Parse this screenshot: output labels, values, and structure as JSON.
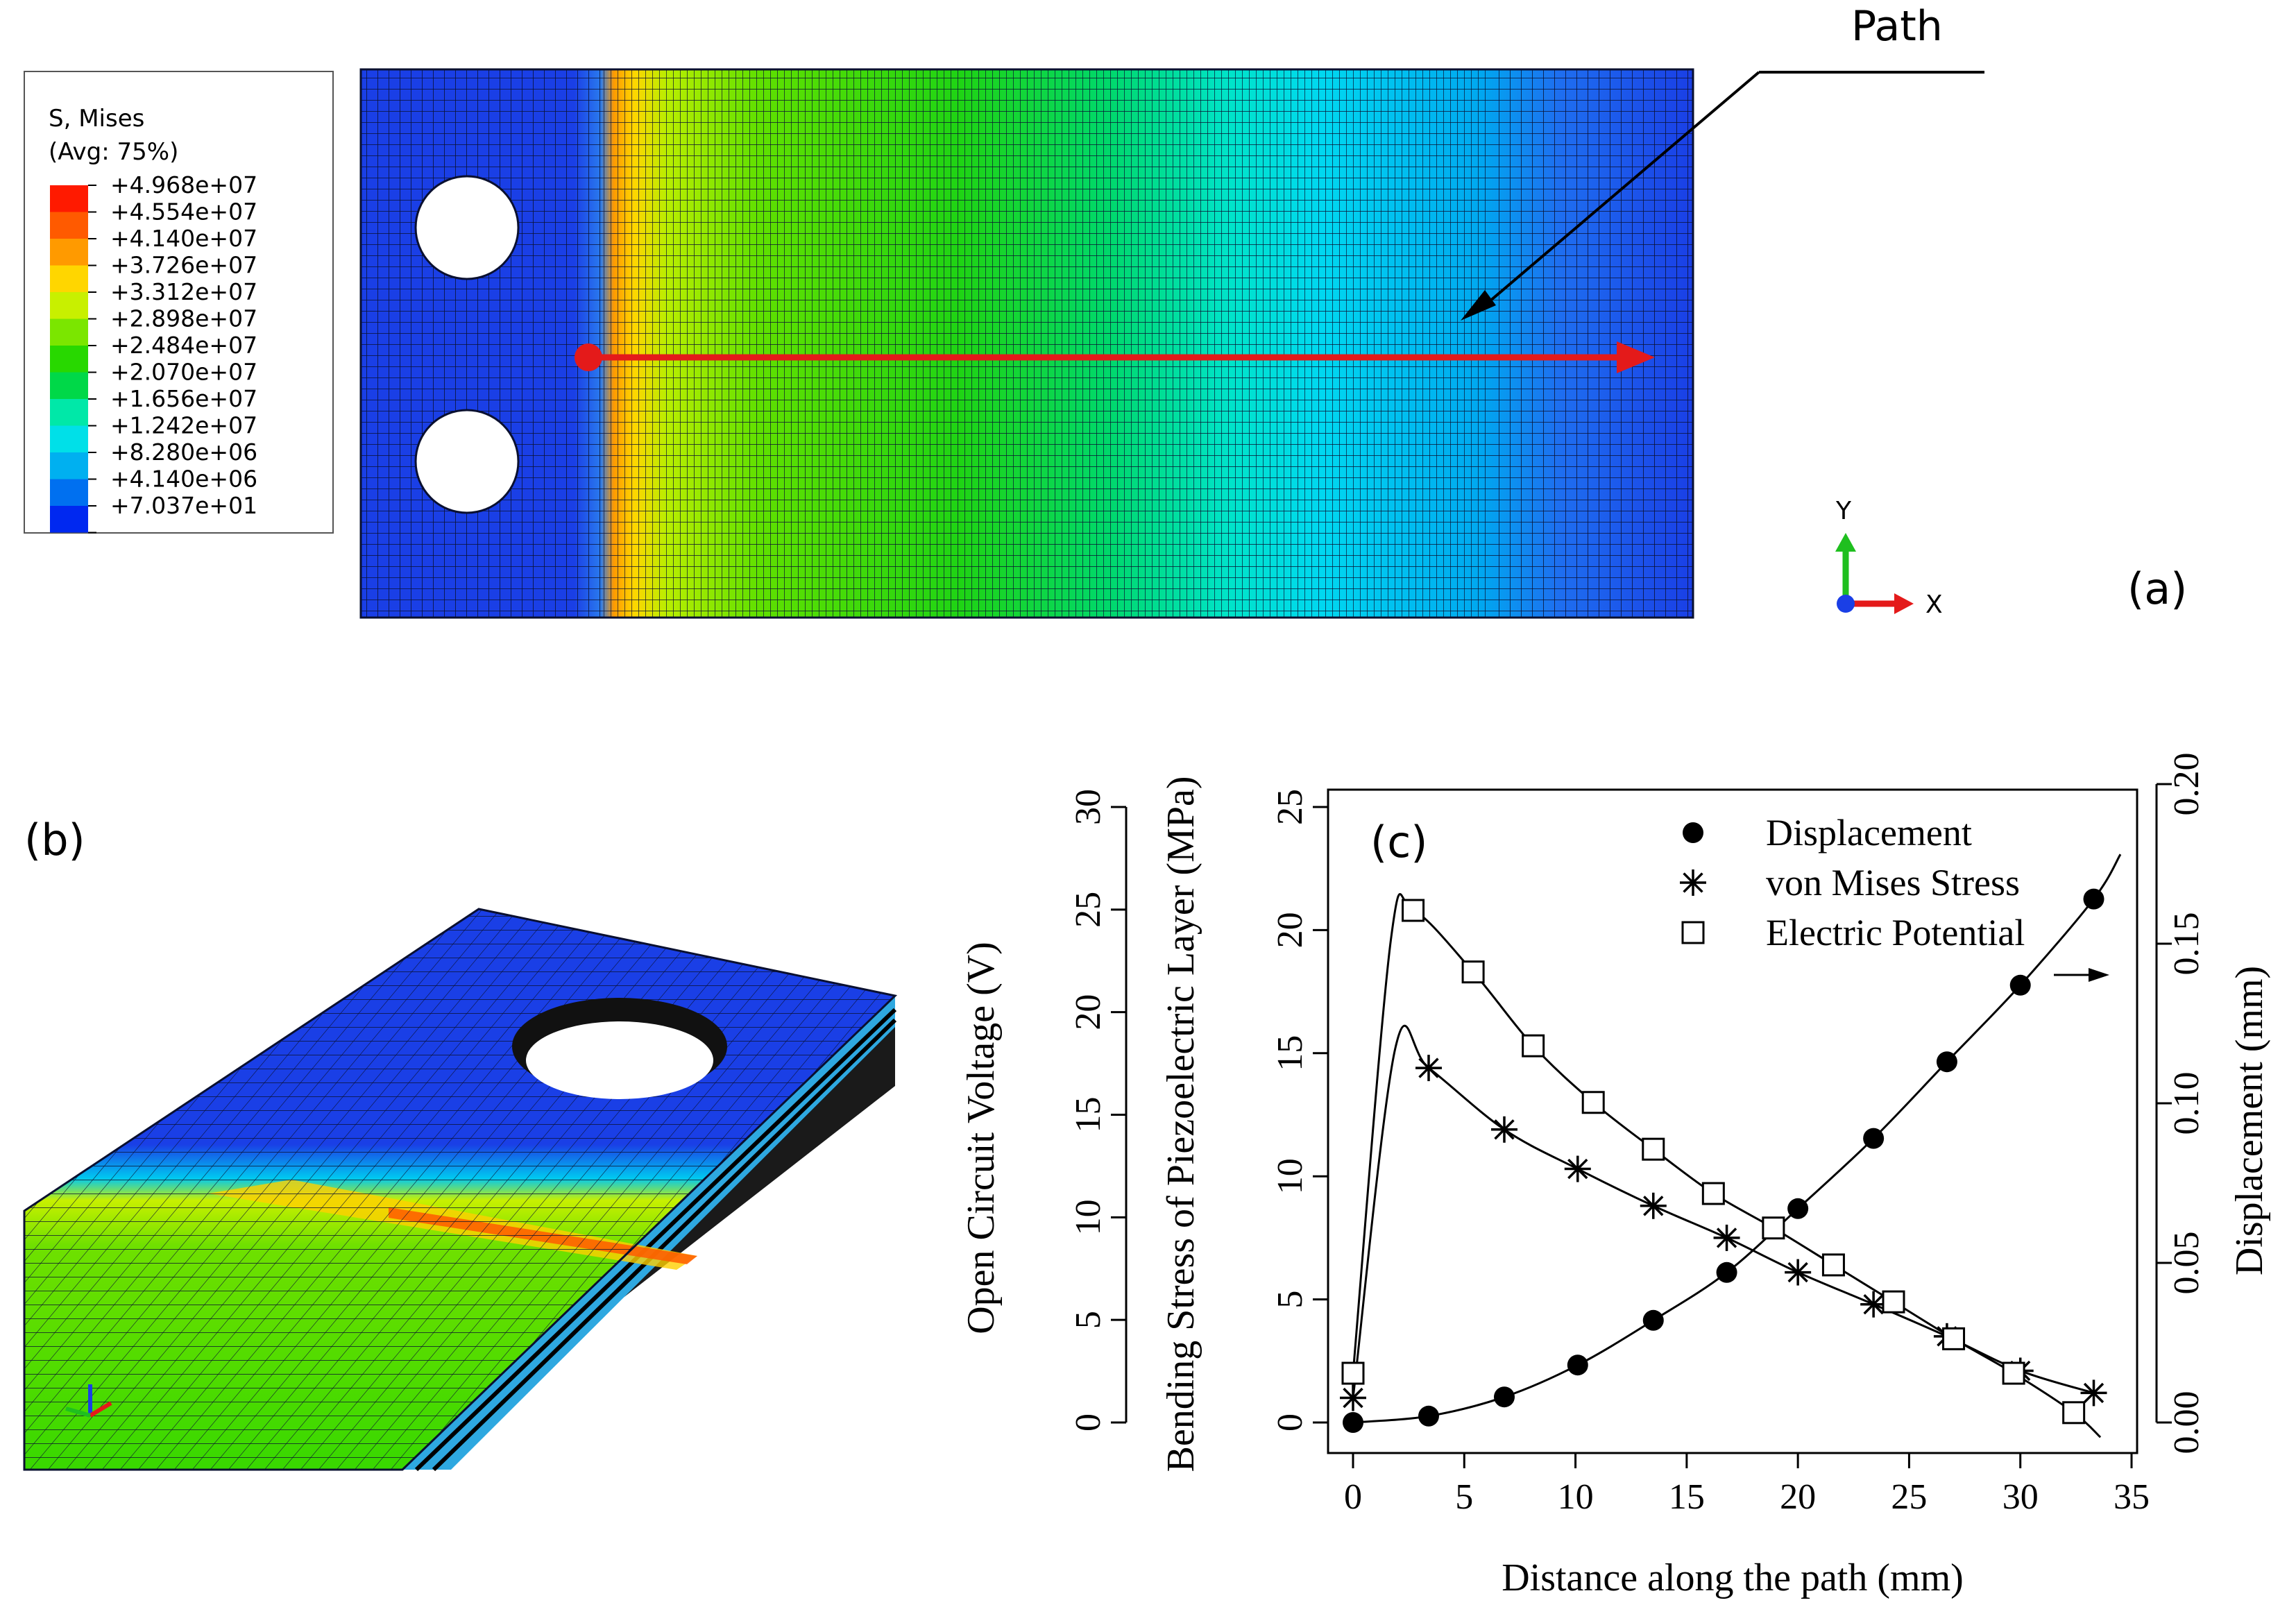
{
  "panel_a": {
    "legend": {
      "title": "S, Mises",
      "subtitle": "(Avg: 75%)",
      "entries": [
        {
          "label": "+4.968e+07",
          "color": "#ff1a00"
        },
        {
          "label": "+4.554e+07",
          "color": "#ff5a00"
        },
        {
          "label": "+4.140e+07",
          "color": "#ff9a00"
        },
        {
          "label": "+3.726e+07",
          "color": "#ffd600"
        },
        {
          "label": "+3.312e+07",
          "color": "#c8f000"
        },
        {
          "label": "+2.898e+07",
          "color": "#7be600"
        },
        {
          "label": "+2.484e+07",
          "color": "#28d800"
        },
        {
          "label": "+2.070e+07",
          "color": "#00d848"
        },
        {
          "label": "+1.656e+07",
          "color": "#00e8a8"
        },
        {
          "label": "+1.242e+07",
          "color": "#00e0e8"
        },
        {
          "label": "+8.280e+06",
          "color": "#00b0f0"
        },
        {
          "label": "+4.140e+06",
          "color": "#0070f0"
        },
        {
          "label": "+7.037e+01",
          "color": "#0028f0"
        }
      ]
    },
    "path_label": "Path",
    "panel_label": "(a)",
    "triad": {
      "y": "Y",
      "x": "X"
    }
  },
  "panel_b": {
    "panel_label": "(b)"
  },
  "panel_c": {
    "panel_label": "(c)"
  },
  "chart_data": {
    "type": "line",
    "title": "",
    "xlabel": "Distance along the path (mm)",
    "ylabel_left_outer": "Open Circuit Voltage (V)",
    "ylabel_left_inner": "Bending Stress of Piezoelectric Layer (MPa)",
    "ylabel_right": "Displacement (mm)",
    "xlim": [
      0,
      35
    ],
    "xticks": [
      "0",
      "5",
      "10",
      "15",
      "20",
      "25",
      "30",
      "35"
    ],
    "ylim_voltage": [
      0,
      30
    ],
    "yticks_voltage": [
      "0",
      "5",
      "10",
      "15",
      "20",
      "25",
      "30"
    ],
    "ylim_stress": [
      0,
      25
    ],
    "yticks_stress": [
      "0",
      "5",
      "10",
      "15",
      "20",
      "25"
    ],
    "ylim_displacement": [
      0,
      0.2
    ],
    "yticks_displacement": [
      "0.00",
      "0.05",
      "0.10",
      "0.15",
      "0.20"
    ],
    "legend": [
      "Displacement",
      "von Mises Stress",
      "Electric Potential"
    ],
    "series": [
      {
        "name": "Displacement",
        "marker": "filled-circle",
        "axis": "displacement",
        "x": [
          0,
          3.4,
          6.8,
          10.1,
          13.5,
          16.8,
          20.0,
          23.4,
          26.7,
          30.0,
          33.3
        ],
        "values": [
          0.0,
          0.002,
          0.008,
          0.018,
          0.032,
          0.047,
          0.067,
          0.089,
          0.113,
          0.137,
          0.164
        ]
      },
      {
        "name": "von Mises Stress",
        "marker": "asterisk",
        "axis": "stress",
        "x": [
          0,
          3.4,
          6.8,
          10.1,
          13.5,
          16.8,
          20.0,
          23.4,
          26.7,
          30.0,
          33.3
        ],
        "values": [
          1.0,
          14.4,
          11.9,
          10.3,
          8.8,
          7.5,
          6.1,
          4.8,
          3.5,
          2.1,
          1.2
        ]
      },
      {
        "name": "Electric Potential",
        "marker": "open-square",
        "axis": "stress",
        "x": [
          0,
          2.7,
          5.4,
          8.1,
          10.8,
          13.5,
          16.2,
          18.9,
          21.6,
          24.3,
          27.0,
          29.7,
          32.4
        ],
        "values": [
          2.0,
          20.8,
          18.3,
          15.3,
          13.0,
          11.1,
          9.3,
          7.9,
          6.4,
          4.9,
          3.4,
          2.0,
          0.4
        ]
      }
    ]
  }
}
